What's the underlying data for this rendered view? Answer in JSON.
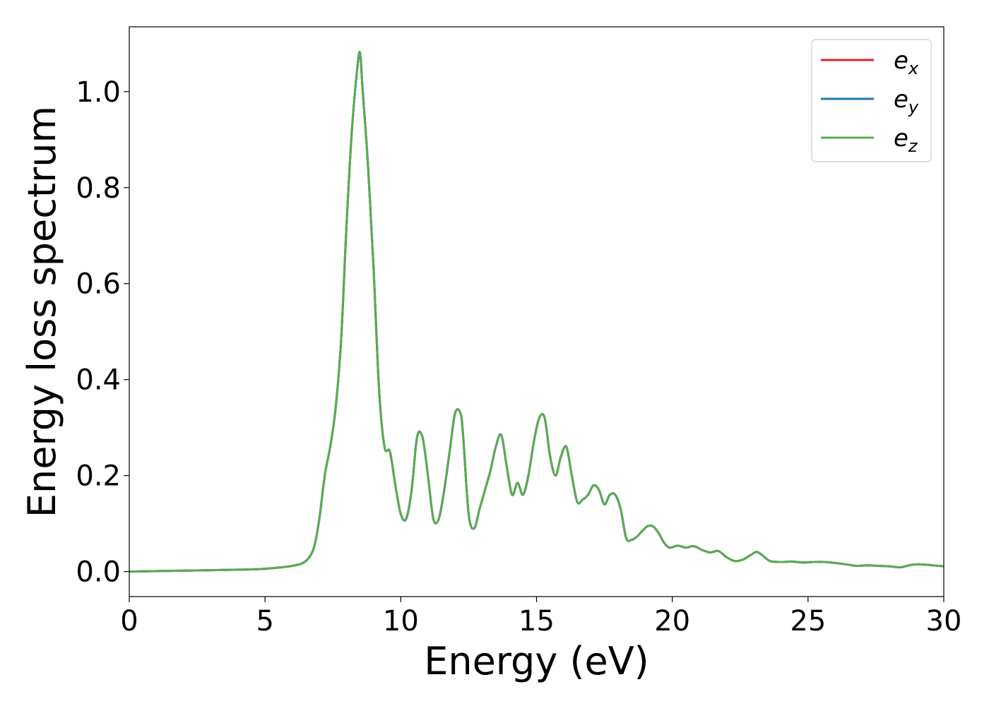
{
  "chart_data": {
    "type": "line",
    "title": "",
    "xlabel": "Energy (eV)",
    "ylabel": "Energy loss spectrum",
    "xlim": [
      0,
      30
    ],
    "ylim": [
      -0.052,
      1.135
    ],
    "xticks": [
      0,
      5,
      10,
      15,
      20,
      25,
      30
    ],
    "xtick_labels": [
      "0",
      "5",
      "10",
      "15",
      "20",
      "25",
      "30"
    ],
    "yticks": [
      0.0,
      0.2,
      0.4,
      0.6,
      0.8,
      1.0
    ],
    "ytick_labels": [
      "0.0",
      "0.2",
      "0.4",
      "0.6",
      "0.8",
      "1.0"
    ],
    "grid": false,
    "legend_position": "top-right",
    "series": [
      {
        "name": "e_x",
        "legend_base": "e",
        "legend_sub": "x",
        "color": "#d62728",
        "x": [
          0,
          2,
          4,
          5,
          6,
          6.5,
          6.8,
          7.0,
          7.2,
          7.4,
          7.6,
          7.8,
          8.0,
          8.2,
          8.4,
          8.5,
          8.6,
          8.8,
          9.0,
          9.2,
          9.4,
          9.6,
          9.8,
          10.0,
          10.2,
          10.4,
          10.6,
          10.8,
          11.0,
          11.2,
          11.4,
          11.6,
          11.8,
          12.0,
          12.2,
          12.3,
          12.5,
          12.7,
          12.9,
          13.1,
          13.3,
          13.5,
          13.7,
          13.9,
          14.1,
          14.3,
          14.5,
          14.7,
          14.9,
          15.1,
          15.3,
          15.5,
          15.7,
          15.9,
          16.1,
          16.3,
          16.5,
          16.7,
          16.9,
          17.1,
          17.3,
          17.5,
          17.7,
          17.9,
          18.1,
          18.3,
          18.5,
          18.7,
          18.9,
          19.1,
          19.3,
          19.5,
          19.7,
          19.9,
          20.2,
          20.5,
          20.8,
          21.1,
          21.4,
          21.7,
          22.0,
          22.3,
          22.6,
          22.9,
          23.1,
          23.3,
          23.6,
          24.0,
          24.4,
          24.8,
          25.2,
          25.6,
          26.0,
          26.4,
          26.8,
          27.2,
          27.6,
          28.0,
          28.4,
          28.8,
          29.2,
          29.6,
          30.0
        ],
        "y": [
          0.0,
          0.002,
          0.004,
          0.006,
          0.012,
          0.022,
          0.05,
          0.11,
          0.2,
          0.26,
          0.34,
          0.48,
          0.72,
          0.92,
          1.05,
          1.08,
          1.0,
          0.84,
          0.63,
          0.38,
          0.26,
          0.25,
          0.18,
          0.12,
          0.11,
          0.17,
          0.28,
          0.28,
          0.2,
          0.11,
          0.11,
          0.17,
          0.25,
          0.33,
          0.33,
          0.28,
          0.12,
          0.09,
          0.13,
          0.17,
          0.21,
          0.26,
          0.285,
          0.22,
          0.16,
          0.185,
          0.16,
          0.2,
          0.27,
          0.32,
          0.32,
          0.24,
          0.2,
          0.24,
          0.26,
          0.2,
          0.145,
          0.15,
          0.16,
          0.18,
          0.17,
          0.14,
          0.16,
          0.16,
          0.13,
          0.07,
          0.066,
          0.073,
          0.085,
          0.095,
          0.094,
          0.08,
          0.06,
          0.05,
          0.054,
          0.05,
          0.053,
          0.045,
          0.04,
          0.043,
          0.03,
          0.022,
          0.025,
          0.035,
          0.041,
          0.035,
          0.022,
          0.02,
          0.021,
          0.019,
          0.02,
          0.02,
          0.018,
          0.015,
          0.012,
          0.013,
          0.012,
          0.011,
          0.009,
          0.014,
          0.015,
          0.013,
          0.011
        ]
      },
      {
        "name": "e_y",
        "legend_base": "e",
        "legend_sub": "y",
        "color": "#1f77b4",
        "x": [
          0,
          2,
          4,
          5,
          6,
          6.5,
          6.8,
          7.0,
          7.2,
          7.4,
          7.6,
          7.8,
          8.0,
          8.2,
          8.4,
          8.5,
          8.6,
          8.8,
          9.0,
          9.2,
          9.4,
          9.6,
          9.8,
          10.0,
          10.2,
          10.4,
          10.6,
          10.8,
          11.0,
          11.2,
          11.4,
          11.6,
          11.8,
          12.0,
          12.2,
          12.3,
          12.5,
          12.7,
          12.9,
          13.1,
          13.3,
          13.5,
          13.7,
          13.9,
          14.1,
          14.3,
          14.5,
          14.7,
          14.9,
          15.1,
          15.3,
          15.5,
          15.7,
          15.9,
          16.1,
          16.3,
          16.5,
          16.7,
          16.9,
          17.1,
          17.3,
          17.5,
          17.7,
          17.9,
          18.1,
          18.3,
          18.5,
          18.7,
          18.9,
          19.1,
          19.3,
          19.5,
          19.7,
          19.9,
          20.2,
          20.5,
          20.8,
          21.1,
          21.4,
          21.7,
          22.0,
          22.3,
          22.6,
          22.9,
          23.1,
          23.3,
          23.6,
          24.0,
          24.4,
          24.8,
          25.2,
          25.6,
          26.0,
          26.4,
          26.8,
          27.2,
          27.6,
          28.0,
          28.4,
          28.8,
          29.2,
          29.6,
          30.0
        ],
        "y": [
          0.0,
          0.002,
          0.004,
          0.006,
          0.012,
          0.022,
          0.05,
          0.11,
          0.2,
          0.26,
          0.34,
          0.48,
          0.72,
          0.92,
          1.05,
          1.08,
          1.0,
          0.84,
          0.63,
          0.38,
          0.26,
          0.25,
          0.18,
          0.12,
          0.11,
          0.17,
          0.28,
          0.28,
          0.2,
          0.11,
          0.11,
          0.17,
          0.25,
          0.33,
          0.33,
          0.28,
          0.12,
          0.09,
          0.13,
          0.17,
          0.21,
          0.26,
          0.285,
          0.22,
          0.16,
          0.185,
          0.16,
          0.2,
          0.27,
          0.32,
          0.32,
          0.24,
          0.2,
          0.24,
          0.26,
          0.2,
          0.145,
          0.15,
          0.16,
          0.18,
          0.17,
          0.14,
          0.16,
          0.16,
          0.13,
          0.07,
          0.066,
          0.073,
          0.085,
          0.095,
          0.094,
          0.08,
          0.06,
          0.05,
          0.054,
          0.05,
          0.053,
          0.045,
          0.04,
          0.043,
          0.03,
          0.022,
          0.025,
          0.035,
          0.041,
          0.035,
          0.022,
          0.02,
          0.021,
          0.019,
          0.02,
          0.02,
          0.018,
          0.015,
          0.012,
          0.013,
          0.012,
          0.011,
          0.009,
          0.014,
          0.015,
          0.013,
          0.011
        ]
      },
      {
        "name": "e_z",
        "legend_base": "e",
        "legend_sub": "z",
        "color": "#5aab51",
        "x": [
          0,
          2,
          4,
          5,
          6,
          6.5,
          6.8,
          7.0,
          7.2,
          7.4,
          7.6,
          7.8,
          8.0,
          8.2,
          8.4,
          8.5,
          8.6,
          8.8,
          9.0,
          9.2,
          9.4,
          9.6,
          9.8,
          10.0,
          10.2,
          10.4,
          10.6,
          10.8,
          11.0,
          11.2,
          11.4,
          11.6,
          11.8,
          12.0,
          12.2,
          12.3,
          12.5,
          12.7,
          12.9,
          13.1,
          13.3,
          13.5,
          13.7,
          13.9,
          14.1,
          14.3,
          14.5,
          14.7,
          14.9,
          15.1,
          15.3,
          15.5,
          15.7,
          15.9,
          16.1,
          16.3,
          16.5,
          16.7,
          16.9,
          17.1,
          17.3,
          17.5,
          17.7,
          17.9,
          18.1,
          18.3,
          18.5,
          18.7,
          18.9,
          19.1,
          19.3,
          19.5,
          19.7,
          19.9,
          20.2,
          20.5,
          20.8,
          21.1,
          21.4,
          21.7,
          22.0,
          22.3,
          22.6,
          22.9,
          23.1,
          23.3,
          23.6,
          24.0,
          24.4,
          24.8,
          25.2,
          25.6,
          26.0,
          26.4,
          26.8,
          27.2,
          27.6,
          28.0,
          28.4,
          28.8,
          29.2,
          29.6,
          30.0
        ],
        "y": [
          0.0,
          0.002,
          0.004,
          0.006,
          0.012,
          0.022,
          0.05,
          0.11,
          0.2,
          0.26,
          0.34,
          0.48,
          0.72,
          0.92,
          1.05,
          1.08,
          1.0,
          0.84,
          0.63,
          0.38,
          0.26,
          0.25,
          0.18,
          0.12,
          0.11,
          0.17,
          0.28,
          0.28,
          0.2,
          0.11,
          0.11,
          0.17,
          0.25,
          0.33,
          0.33,
          0.28,
          0.12,
          0.09,
          0.13,
          0.17,
          0.21,
          0.26,
          0.285,
          0.22,
          0.16,
          0.185,
          0.16,
          0.2,
          0.27,
          0.32,
          0.32,
          0.24,
          0.2,
          0.24,
          0.26,
          0.2,
          0.145,
          0.15,
          0.16,
          0.18,
          0.17,
          0.14,
          0.16,
          0.16,
          0.13,
          0.07,
          0.066,
          0.073,
          0.085,
          0.095,
          0.094,
          0.08,
          0.06,
          0.05,
          0.054,
          0.05,
          0.053,
          0.045,
          0.04,
          0.043,
          0.03,
          0.022,
          0.025,
          0.035,
          0.041,
          0.035,
          0.022,
          0.02,
          0.021,
          0.019,
          0.02,
          0.02,
          0.018,
          0.015,
          0.012,
          0.013,
          0.012,
          0.011,
          0.009,
          0.014,
          0.015,
          0.013,
          0.011
        ]
      }
    ]
  }
}
